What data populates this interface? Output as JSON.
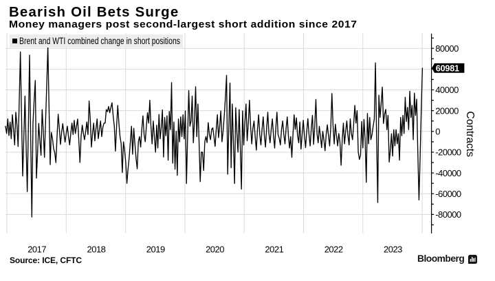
{
  "header": {
    "title": "Bearish Oil Bets Surge",
    "subtitle": "Money managers post second-largest short addition since 2017"
  },
  "legend": {
    "label": "Brent and WTI combined change in short positions"
  },
  "chart_data": {
    "type": "line",
    "title": "Bearish Oil Bets Surge",
    "subtitle": "Money managers post second-largest short addition since 2017",
    "series_name": "Brent and WTI combined change in short positions",
    "ylabel": "Contracts",
    "y_ticks": [
      80000,
      60000,
      40000,
      20000,
      0,
      -20000,
      -40000,
      -60000,
      -80000
    ],
    "y_minor_ticks": [
      90000,
      70000,
      50000,
      30000,
      10000,
      -10000,
      -30000,
      -50000,
      -70000,
      -90000
    ],
    "ylim": [
      -98500,
      93800
    ],
    "x_grid_years": [
      2017,
      2018,
      2019,
      2020,
      2021,
      2022,
      2023,
      2024
    ],
    "x_tick_labels": [
      "2017",
      "2018",
      "2019",
      "2020",
      "2021",
      "2022",
      "2023"
    ],
    "grid": true,
    "legend_position": "top-left",
    "last_value": 60981,
    "last_value_label": "60981",
    "x_years": [
      2016.9768,
      2016.9961,
      2017.0154,
      2017.0347,
      2017.054,
      2017.0733,
      2017.0926,
      2017.112,
      2017.1313,
      2017.1506,
      2017.1699,
      2017.1892,
      2017.2085,
      2017.2278,
      2017.2471,
      2017.2664,
      2017.2857,
      2017.305,
      2017.3243,
      2017.3436,
      2017.3629,
      2017.3822,
      2017.4015,
      2017.4208,
      2017.4401,
      2017.4594,
      2017.4787,
      2017.498,
      2017.5173,
      2017.5366,
      2017.5559,
      2017.5752,
      2017.5946,
      2017.6139,
      2017.6332,
      2017.6525,
      2017.6718,
      2017.6911,
      2017.7104,
      2017.7297,
      2017.749,
      2017.7683,
      2017.7876,
      2017.8069,
      2017.8262,
      2017.8455,
      2017.8648,
      2017.8841,
      2017.9034,
      2017.9227,
      2017.942,
      2017.9613,
      2017.9806,
      2017.9999,
      2018.0192,
      2018.0385,
      2018.0578,
      2018.0772,
      2018.0965,
      2018.1158,
      2018.1351,
      2018.1544,
      2018.1737,
      2018.193,
      2018.2123,
      2018.2316,
      2018.2509,
      2018.2702,
      2018.2895,
      2018.3088,
      2018.3281,
      2018.3474,
      2018.3667,
      2018.386,
      2018.4053,
      2018.4246,
      2018.4439,
      2018.4632,
      2018.4825,
      2018.5018,
      2018.5211,
      2018.5404,
      2018.5598,
      2018.5791,
      2018.5984,
      2018.6177,
      2018.637,
      2018.6563,
      2018.6756,
      2018.6949,
      2018.7142,
      2018.7335,
      2018.7528,
      2018.7721,
      2018.7914,
      2018.8107,
      2018.83,
      2018.8493,
      2018.8686,
      2018.8879,
      2018.9072,
      2018.9265,
      2018.9458,
      2018.9651,
      2018.9844,
      2019.0037,
      2019.023,
      2019.0424,
      2019.0617,
      2019.081,
      2019.1003,
      2019.1196,
      2019.1389,
      2019.1582,
      2019.1775,
      2019.1968,
      2019.2161,
      2019.2354,
      2019.2547,
      2019.274,
      2019.2933,
      2019.3126,
      2019.3319,
      2019.3512,
      2019.3705,
      2019.3898,
      2019.4091,
      2019.4284,
      2019.4477,
      2019.467,
      2019.4863,
      2019.5056,
      2019.525,
      2019.5443,
      2019.5636,
      2019.5829,
      2019.6022,
      2019.6215,
      2019.6408,
      2019.6601,
      2019.6794,
      2019.6987,
      2019.718,
      2019.7373,
      2019.7566,
      2019.7759,
      2019.7952,
      2019.8145,
      2019.8338,
      2019.8531,
      2019.8724,
      2019.8917,
      2019.911,
      2019.9303,
      2019.9496,
      2019.9689,
      2019.9882,
      2020.0076,
      2020.0269,
      2020.0462,
      2020.0655,
      2020.0848,
      2020.1041,
      2020.1234,
      2020.1427,
      2020.162,
      2020.1813,
      2020.2006,
      2020.2199,
      2020.2392,
      2020.2585,
      2020.2778,
      2020.2971,
      2020.3164,
      2020.3357,
      2020.355,
      2020.3743,
      2020.3936,
      2020.4129,
      2020.4322,
      2020.4515,
      2020.4708,
      2020.4902,
      2020.5095,
      2020.5288,
      2020.5481,
      2020.5674,
      2020.5867,
      2020.606,
      2020.6253,
      2020.6446,
      2020.6639,
      2020.6832,
      2020.7025,
      2020.7218,
      2020.7411,
      2020.7604,
      2020.7797,
      2020.799,
      2020.8183,
      2020.8376,
      2020.8569,
      2020.8762,
      2020.8955,
      2020.9148,
      2020.9341,
      2020.9534,
      2020.9728,
      2020.9921,
      2021.0114,
      2021.0307,
      2021.05,
      2021.0693,
      2021.0886,
      2021.1079,
      2021.1272,
      2021.1465,
      2021.1658,
      2021.1851,
      2021.2044,
      2021.2237,
      2021.243,
      2021.2623,
      2021.2816,
      2021.3009,
      2021.3202,
      2021.3395,
      2021.3588,
      2021.3781,
      2021.3974,
      2021.4167,
      2021.436,
      2021.4553,
      2021.4747,
      2021.494,
      2021.5133,
      2021.5326,
      2021.5519,
      2021.5712,
      2021.5905,
      2021.6098,
      2021.6291,
      2021.6484,
      2021.6677,
      2021.687,
      2021.7063,
      2021.7256,
      2021.7449,
      2021.7642,
      2021.7835,
      2021.8028,
      2021.8221,
      2021.8414,
      2021.8607,
      2021.88,
      2021.8993,
      2021.9186,
      2021.9379,
      2021.9573,
      2021.9766,
      2021.9959,
      2022.0152,
      2022.0345,
      2022.0538,
      2022.0731,
      2022.0924,
      2022.1117,
      2022.131,
      2022.1503,
      2022.1696,
      2022.1889,
      2022.2082,
      2022.2275,
      2022.2468,
      2022.2661,
      2022.2854,
      2022.3047,
      2022.324,
      2022.3433,
      2022.3626,
      2022.3819,
      2022.4012,
      2022.4205,
      2022.4399,
      2022.4592,
      2022.4785,
      2022.4978,
      2022.5171,
      2022.5364,
      2022.5557,
      2022.575,
      2022.5943,
      2022.6136,
      2022.6329,
      2022.6522,
      2022.6715,
      2022.6908,
      2022.7101,
      2022.7294,
      2022.7487,
      2022.768,
      2022.7873,
      2022.8066,
      2022.8259,
      2022.8452,
      2022.8645,
      2022.8838,
      2022.9031,
      2022.9225,
      2022.9418,
      2022.9611,
      2022.9804,
      2022.9997,
      2023.019,
      2023.0383,
      2023.0576,
      2023.0769,
      2023.0962,
      2023.1155,
      2023.1348,
      2023.1541,
      2023.1734,
      2023.1927,
      2023.212,
      2023.2313,
      2023.2506,
      2023.2699,
      2023.2892,
      2023.3085,
      2023.3278,
      2023.3471,
      2023.3664,
      2023.3857,
      2023.4051,
      2023.4244,
      2023.4437,
      2023.463,
      2023.4823,
      2023.5016,
      2023.5209,
      2023.5402,
      2023.5595,
      2023.5788,
      2023.5981,
      2023.6174,
      2023.6367,
      2023.656,
      2023.6753,
      2023.6946,
      2023.7139,
      2023.7332,
      2023.7525,
      2023.7718,
      2023.7911,
      2023.8104,
      2023.8297,
      2023.849,
      2023.8683,
      2023.8877,
      2023.907,
      2023.9263,
      2023.9456,
      2023.9649,
      2023.9842,
      2024.0035
    ],
    "values": [
      5000,
      -2000,
      12000,
      -4000,
      9000,
      -7000,
      16000,
      2000,
      -13000,
      18500,
      6000,
      -14500,
      29217,
      76500,
      15278,
      -43000,
      -6872,
      34000,
      -13330,
      -58000,
      5585,
      73500,
      -6358,
      -82500,
      8000,
      29804,
      49000,
      -45000,
      -20763,
      7700,
      -8917,
      -23000,
      21000,
      -19,
      -25000,
      10000,
      44674,
      82000,
      23637,
      -32000,
      -1000,
      -6786,
      -16500,
      -20562,
      -30000,
      -5000,
      16500,
      3000,
      -12500,
      -1000,
      7500,
      -2000,
      -10300,
      -2000,
      5000,
      -5000,
      -13000,
      -2000,
      8000,
      -3000,
      10600,
      -2000,
      5000,
      11900,
      -8000,
      -29900,
      -5000,
      6000,
      -2000,
      -8000,
      0,
      9000,
      -3000,
      29300,
      12000,
      -15000,
      -2000,
      8000,
      -9000,
      3000,
      12000,
      -7000,
      2000,
      10000,
      -5000,
      4000,
      8000,
      8000,
      21000,
      19000,
      24000,
      18000,
      23000,
      27600,
      14877,
      5000,
      -18900,
      5000,
      25000,
      8000,
      -5000,
      -12000,
      -39600,
      -10000,
      -18000,
      -30000,
      -50000,
      -35898,
      -25000,
      -10000,
      5000,
      -22000,
      3000,
      -12000,
      -26329,
      -36000,
      -10000,
      -5000,
      -15000,
      2000,
      15000,
      -3000,
      -10000,
      5000,
      18000,
      8000,
      30000,
      5000,
      -12000,
      10000,
      -5000,
      -20000,
      6000,
      -15900,
      16300,
      -7100,
      3894,
      20700,
      -24700,
      13400,
      -4200,
      15000,
      -27700,
      19200,
      1700,
      47000,
      -30600,
      9000,
      -36400,
      200,
      -42300,
      11900,
      -10100,
      14000,
      -5000,
      16000,
      -7200,
      19700,
      -50200,
      -5000,
      39400,
      5000,
      10000,
      34000,
      -11000,
      10000,
      43000,
      -5000,
      26400,
      -10000,
      -48400,
      -20000,
      -20000,
      -37700,
      -10000,
      -5000,
      -10800,
      8500,
      -3000,
      -8000,
      2000,
      3400,
      -5000,
      -14400,
      2000,
      16100,
      -6000,
      5000,
      19700,
      -10000,
      261,
      15000,
      32586,
      54000,
      -41200,
      5657,
      46600,
      -35000,
      26400,
      -10616,
      -50200,
      22800,
      -1295,
      -19900,
      21000,
      -15579,
      -55600,
      19700,
      -13000,
      8160,
      26400,
      -9000,
      8000,
      30000,
      5000,
      -12000,
      3000,
      10000,
      -5000,
      -18000,
      2000,
      16000,
      -3000,
      -13000,
      2000,
      14000,
      -4000,
      -15000,
      3000,
      18500,
      -2000,
      -11000,
      2000,
      12000,
      -4000,
      -16000,
      3000,
      18500,
      -3000,
      -6588,
      -13000,
      2000,
      10000,
      -3000,
      -12000,
      3000,
      14000,
      -4000,
      -16000,
      -5000,
      -25000,
      -3000,
      16000,
      2000,
      13000,
      -4000,
      -11000,
      9000,
      -17000,
      -3000,
      10700,
      -4000,
      -15600,
      0,
      12300,
      -3000,
      -14000,
      3000,
      15400,
      -12500,
      5000,
      30800,
      -2000,
      -11000,
      4900,
      -5000,
      -15600,
      0,
      -8000,
      -18600,
      -3000,
      6400,
      -4000,
      -14000,
      4000,
      36500,
      5000,
      -12000,
      7000,
      -4000,
      -14000,
      -2000,
      -10000,
      -32600,
      -8000,
      8000,
      -12000,
      0,
      10000,
      -4000,
      -13000,
      12000,
      -2000,
      -8000,
      7000,
      25000,
      8000,
      20000,
      -20000,
      -27000,
      -22900,
      9500,
      -15900,
      11500,
      -8000,
      -49000,
      17300,
      -11900,
      13400,
      -8000,
      -3255,
      5000,
      12000,
      66000,
      -3919,
      -68500,
      34900,
      13400,
      26525,
      42700,
      7600,
      16647,
      21200,
      1700,
      15400,
      -29500,
      -18200,
      -2200,
      -23700,
      1700,
      -13900,
      1700,
      -11900,
      -2200,
      -27600,
      13400,
      -4200,
      15400,
      -2000,
      32900,
      9500,
      23100,
      1700,
      38700,
      13400,
      25100,
      -8000,
      36800,
      15400,
      31000,
      -20000,
      -66000,
      -25543,
      20840,
      60981
    ]
  },
  "footer": {
    "source": "Source: ICE, CFTC",
    "brand": "Bloomberg"
  },
  "colors": {
    "background": "#ffffff",
    "grid": "#d9d9d9",
    "text": "#000000",
    "legend_bg": "#ededed",
    "line": "#000000",
    "axis": "#000000",
    "badge_bg": "#000000",
    "badge_text": "#ffffff"
  }
}
